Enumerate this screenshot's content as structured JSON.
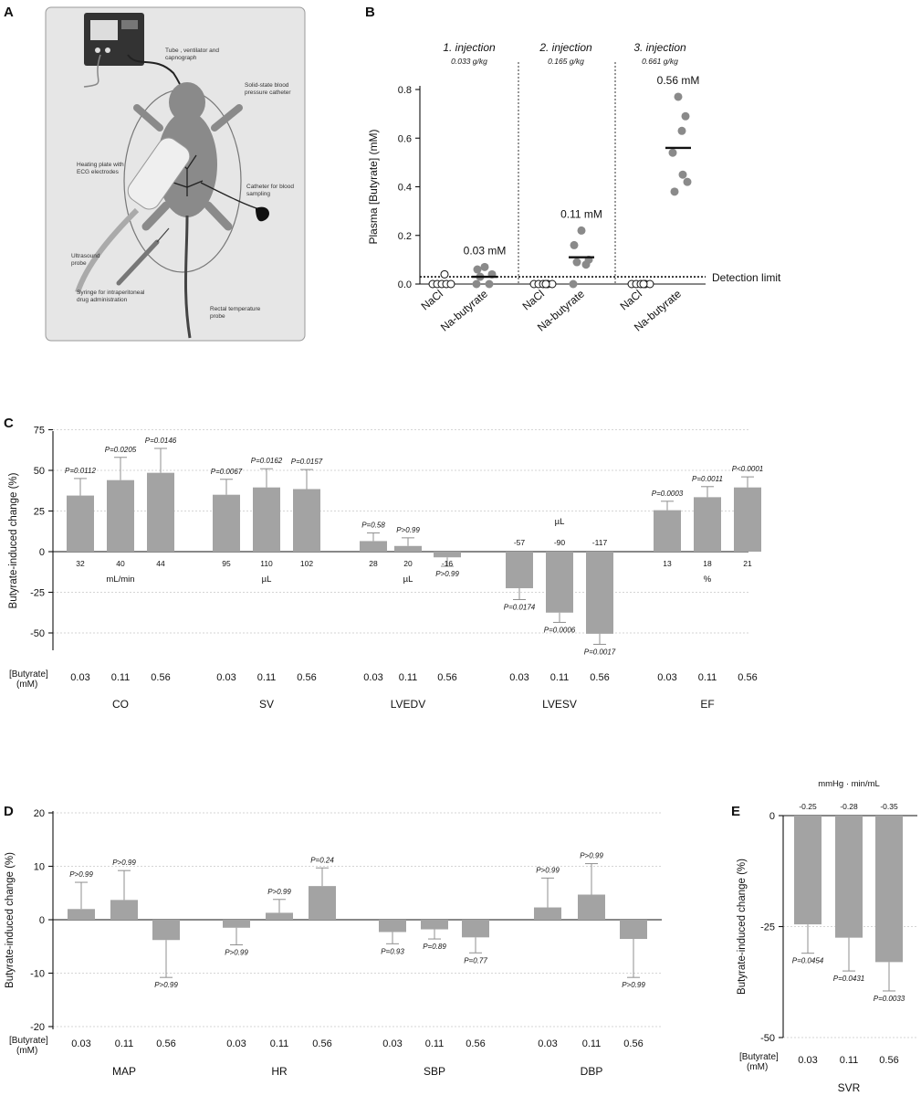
{
  "panels": {
    "A": {
      "label": "A",
      "annotations": [
        {
          "lines": [
            "Tube , ventilator and",
            "capnograph"
          ]
        },
        {
          "lines": [
            "Solid-state blood",
            "pressure catheter"
          ]
        },
        {
          "lines": [
            "Heating plate with",
            "ECG electrodes"
          ]
        },
        {
          "lines": [
            "Catheter for blood",
            "sampling"
          ]
        },
        {
          "lines": [
            "Ultrasound",
            "probe"
          ]
        },
        {
          "lines": [
            "Syringe for intraperitoneal",
            "drug administration"
          ]
        },
        {
          "lines": [
            "Rectal temperature",
            "probe"
          ]
        }
      ]
    },
    "B": {
      "label": "B"
    },
    "C": {
      "label": "C"
    },
    "D": {
      "label": "D"
    },
    "E": {
      "label": "E"
    }
  },
  "chart_data": [
    {
      "panel": "B",
      "type": "scatter",
      "ylabel": "Plasma [Butyrate] (mM)",
      "ylim": [
        0,
        0.8
      ],
      "yticks": [
        "0.0",
        "0.2",
        "0.4",
        "0.6",
        "0.8"
      ],
      "detection_limit": 0.03,
      "detection_label": "Detection limit",
      "groups": [
        {
          "title": "1. injection",
          "dose": "0.033 g/kg",
          "mean_label": "0.03 mM",
          "nacl_label": "NaCl",
          "nacl": [
            0.0,
            0.0,
            0.0,
            0.0,
            0.0,
            0.04
          ],
          "butyrate_label": "Na-butyrate",
          "butyrate": [
            0.07,
            0.06,
            0.04,
            0.03,
            0.0,
            0.0
          ],
          "butyrate_mean": 0.03
        },
        {
          "title": "2. injection",
          "dose": "0.165 g/kg",
          "mean_label": "0.11 mM",
          "nacl_label": "NaCl",
          "nacl": [
            0.0,
            0.0,
            0.0,
            0.0,
            0.0,
            0.0
          ],
          "butyrate_label": "Na-butyrate",
          "butyrate": [
            0.22,
            0.16,
            0.1,
            0.09,
            0.08,
            0.0
          ],
          "butyrate_mean": 0.11
        },
        {
          "title": "3. injection",
          "dose": "0.661 g/kg",
          "mean_label": "0.56 mM",
          "nacl_label": "NaCl",
          "nacl": [
            0.0,
            0.0,
            0.0,
            0.0,
            0.0,
            0.0
          ],
          "butyrate_label": "Na-butyrate",
          "butyrate": [
            0.77,
            0.69,
            0.63,
            0.54,
            0.45,
            0.42,
            0.38
          ],
          "butyrate_mean": 0.56
        }
      ]
    },
    {
      "panel": "C",
      "type": "bar",
      "ylabel": "Butyrate-induced change (%)",
      "ylim": [
        -62,
        75
      ],
      "yticks": [
        -50,
        -25,
        0,
        25,
        50,
        75
      ],
      "conc_header": [
        "[Butyrate]",
        "(mM)"
      ],
      "concentrations": [
        "0.03",
        "0.11",
        "0.56"
      ],
      "groups": [
        {
          "name": "CO",
          "unit": "mL/min",
          "values": [
            34.5,
            44,
            48.5
          ],
          "errors": [
            10.5,
            14,
            15
          ],
          "p": [
            "P=0.0112",
            "P=0.0205",
            "P=0.0146"
          ],
          "abs": [
            "32",
            "40",
            "44"
          ]
        },
        {
          "name": "SV",
          "unit": "µL",
          "values": [
            35,
            39.5,
            38.5
          ],
          "errors": [
            9.5,
            11.5,
            12
          ],
          "p": [
            "P=0.0067",
            "P=0.0162",
            "P=0.0157"
          ],
          "abs": [
            "95",
            "110",
            "102"
          ]
        },
        {
          "name": "LVEDV",
          "unit": "µL",
          "values": [
            6.5,
            3.5,
            -3.5
          ],
          "errors": [
            5,
            5,
            5.5
          ],
          "p": [
            "P=0.58",
            "P>0.99",
            "P>0.99"
          ],
          "abs": [
            "28",
            "20",
            "-16"
          ]
        },
        {
          "name": "LVESV",
          "unit": "µL",
          "values": [
            -22.5,
            -37.5,
            -50.5
          ],
          "errors": [
            7,
            6,
            6.5
          ],
          "p": [
            "P=0.0174",
            "P=0.0006",
            "P=0.0017"
          ],
          "abs": [
            "-57",
            "-90",
            "-117"
          ]
        },
        {
          "name": "EF",
          "unit": "%",
          "values": [
            25.5,
            33.5,
            39.5
          ],
          "errors": [
            5.5,
            6.5,
            6.5
          ],
          "p": [
            "P=0.0003",
            "P=0.0011",
            "P<0.0001"
          ],
          "abs": [
            "13",
            "18",
            "21"
          ]
        }
      ]
    },
    {
      "panel": "D",
      "type": "bar",
      "ylabel": "Butyrate-induced change (%)",
      "ylim": [
        -20,
        20
      ],
      "yticks": [
        -20,
        -10,
        0,
        10,
        20
      ],
      "conc_header": [
        "[Butyrate]",
        "(mM)"
      ],
      "concentrations": [
        "0.03",
        "0.11",
        "0.56"
      ],
      "groups": [
        {
          "name": "MAP",
          "values": [
            2,
            3.7,
            -3.8
          ],
          "errors": [
            5,
            5.5,
            7
          ],
          "p": [
            "P>0.99",
            "P>0.99",
            "P>0.99"
          ]
        },
        {
          "name": "HR",
          "values": [
            -1.5,
            1.3,
            6.3
          ],
          "errors": [
            3.2,
            2.5,
            3.4
          ],
          "p": [
            "P>0.99",
            "P>0.99",
            "P=0.24"
          ]
        },
        {
          "name": "SBP",
          "values": [
            -2.3,
            -1.8,
            -3.3
          ],
          "errors": [
            2.2,
            1.8,
            2.9
          ],
          "p": [
            "P=0.93",
            "P=0.89",
            "P=0.77"
          ]
        },
        {
          "name": "DBP",
          "values": [
            2.3,
            4.7,
            -3.6
          ],
          "errors": [
            5.5,
            5.8,
            7.2
          ],
          "p": [
            "P>0.99",
            "P>0.99",
            "P>0.99"
          ]
        }
      ]
    },
    {
      "panel": "E",
      "type": "bar",
      "ylabel": "Butyrate-induced change (%)",
      "ylim": [
        -50,
        0
      ],
      "yticks": [
        -50,
        -25,
        0
      ],
      "unit": "mmHg · min/mL",
      "conc_header": [
        "[Butyrate]",
        "(mM)"
      ],
      "concentrations": [
        "0.03",
        "0.11",
        "0.56"
      ],
      "groups": [
        {
          "name": "SVR",
          "values": [
            -24.5,
            -27.5,
            -33
          ],
          "errors": [
            6.5,
            7.5,
            6.5
          ],
          "p": [
            "P=0.0454",
            "P=0.0431",
            "P=0.0033"
          ],
          "abs": [
            "-0.25",
            "-0.28",
            "-0.35"
          ]
        }
      ]
    }
  ]
}
